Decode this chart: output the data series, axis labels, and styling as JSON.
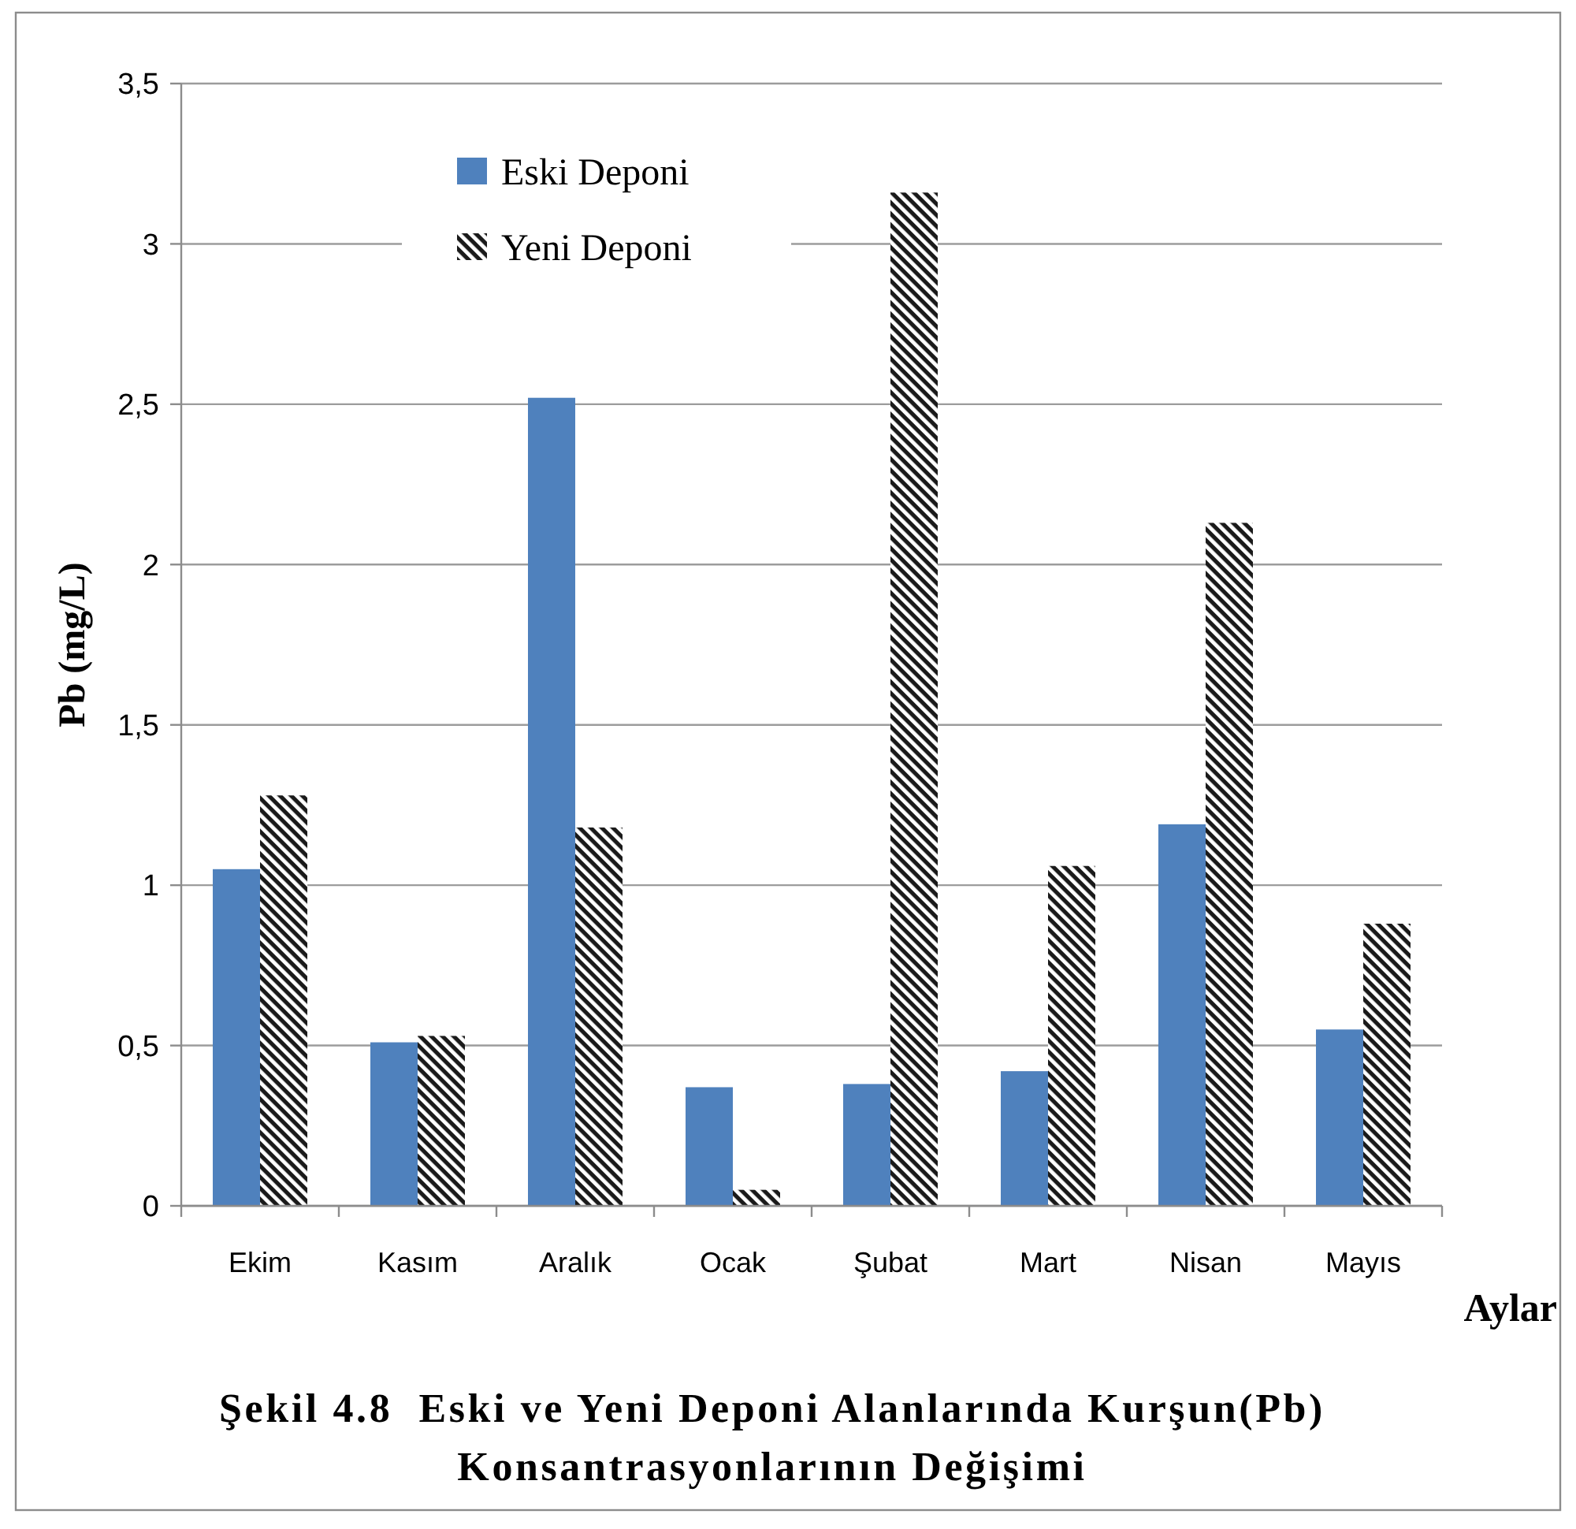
{
  "chart_data": {
    "type": "bar",
    "title": "Şekil 4.8  Eski ve Yeni Deponi Alanlarında Kurşun(Pb)\nKonsantrasyonlarının Değişimi",
    "xlabel": "Aylar",
    "ylabel": "Pb (mg/L)",
    "categories": [
      "Ekim",
      "Kasım",
      "Aralık",
      "Ocak",
      "Şubat",
      "Mart",
      "Nisan",
      "Mayıs"
    ],
    "series": [
      {
        "name": "Eski Deponi",
        "color": "#4f81bd",
        "values": [
          1.05,
          0.51,
          2.52,
          0.37,
          0.38,
          0.42,
          1.19,
          0.55
        ]
      },
      {
        "name": "Yeni Deponi",
        "color": "#1a1a1a",
        "values": [
          1.28,
          0.53,
          1.18,
          0.05,
          3.16,
          1.06,
          2.13,
          0.88
        ]
      }
    ],
    "ylim": [
      0,
      3.5
    ],
    "yticks": [
      0,
      {
        "value": 0.5,
        "label": "0,5"
      },
      1,
      {
        "value": 1.5,
        "label": "1,5"
      },
      2,
      {
        "value": 2.5,
        "label": "2,5"
      },
      3,
      {
        "value": 3.5,
        "label": "3,5"
      }
    ],
    "grid": true,
    "legend": "top"
  }
}
